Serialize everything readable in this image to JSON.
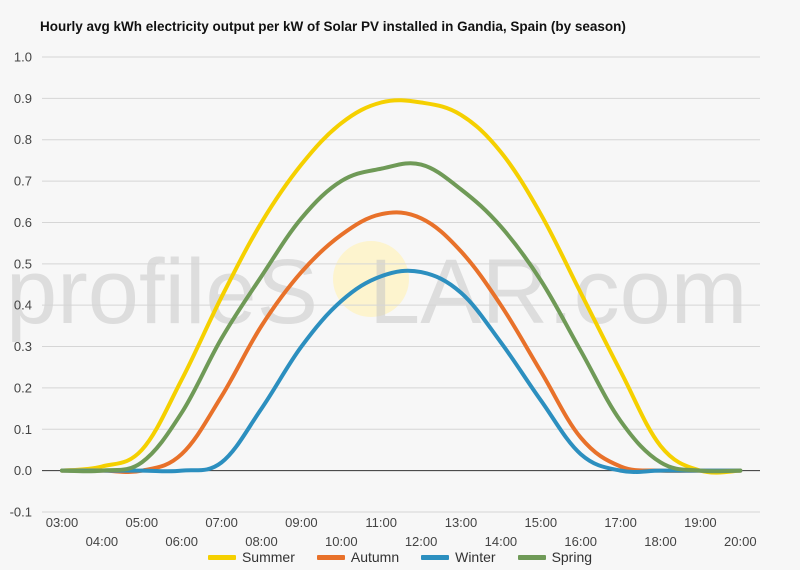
{
  "chart_data": {
    "type": "line",
    "title": "Hourly avg kWh electricity output per kW of Solar PV installed in Gandia, Spain (by season)",
    "xlabel": "",
    "ylabel": "",
    "ylim": [
      -0.1,
      1.0
    ],
    "yticks": [
      "-0.1",
      "0.0",
      "0.1",
      "0.2",
      "0.3",
      "0.4",
      "0.5",
      "0.6",
      "0.7",
      "0.8",
      "0.9",
      "1.0"
    ],
    "grid": true,
    "legend": "bottom",
    "x": [
      "03:00",
      "04:00",
      "05:00",
      "06:00",
      "07:00",
      "08:00",
      "09:00",
      "10:00",
      "11:00",
      "12:00",
      "13:00",
      "14:00",
      "15:00",
      "16:00",
      "17:00",
      "18:00",
      "19:00",
      "20:00"
    ],
    "series": [
      {
        "name": "Summer",
        "color": "#f5d000",
        "values": [
          0.0,
          0.01,
          0.05,
          0.22,
          0.42,
          0.6,
          0.74,
          0.84,
          0.89,
          0.89,
          0.86,
          0.77,
          0.62,
          0.43,
          0.24,
          0.06,
          0.0,
          0.0
        ]
      },
      {
        "name": "Autumn",
        "color": "#e8712a",
        "values": [
          0.0,
          0.0,
          0.0,
          0.04,
          0.18,
          0.35,
          0.48,
          0.57,
          0.62,
          0.61,
          0.53,
          0.4,
          0.24,
          0.08,
          0.01,
          0.0,
          0.0,
          0.0
        ]
      },
      {
        "name": "Winter",
        "color": "#2c8fbf",
        "values": [
          0.0,
          0.0,
          0.0,
          0.0,
          0.02,
          0.15,
          0.3,
          0.41,
          0.47,
          0.48,
          0.43,
          0.31,
          0.17,
          0.04,
          0.0,
          0.0,
          0.0,
          0.0
        ]
      },
      {
        "name": "Spring",
        "color": "#6f9a57",
        "values": [
          0.0,
          0.0,
          0.02,
          0.14,
          0.32,
          0.47,
          0.61,
          0.7,
          0.73,
          0.74,
          0.68,
          0.59,
          0.46,
          0.29,
          0.12,
          0.02,
          0.0,
          0.0
        ]
      }
    ]
  }
}
